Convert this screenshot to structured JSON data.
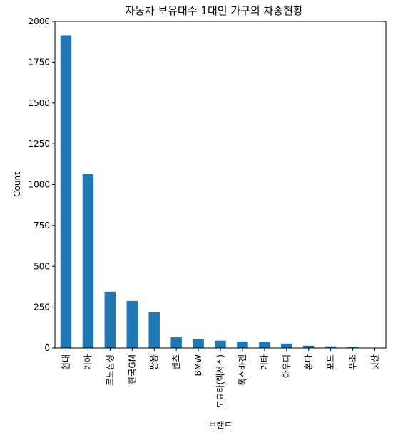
{
  "chart_data": {
    "type": "bar",
    "title": "자동차 보유대수 1대인 가구의 차종현황",
    "xlabel": "브랜드",
    "ylabel": "Count",
    "categories": [
      "현대",
      "기아",
      "르노삼성",
      "한국GM",
      "쌍용",
      "벤츠",
      "BMW",
      "도요타(렉서스)",
      "폭스바겐",
      "기타",
      "아우디",
      "혼다",
      "포드",
      "푸조",
      "닛산"
    ],
    "values": [
      1915,
      1065,
      345,
      288,
      218,
      65,
      55,
      45,
      40,
      38,
      27,
      14,
      10,
      5,
      2
    ],
    "ylim": [
      0,
      2000
    ],
    "yticks": [
      0,
      250,
      500,
      750,
      1000,
      1250,
      1500,
      1750,
      2000
    ],
    "bar_color": "#1f77b4",
    "grid": false
  }
}
